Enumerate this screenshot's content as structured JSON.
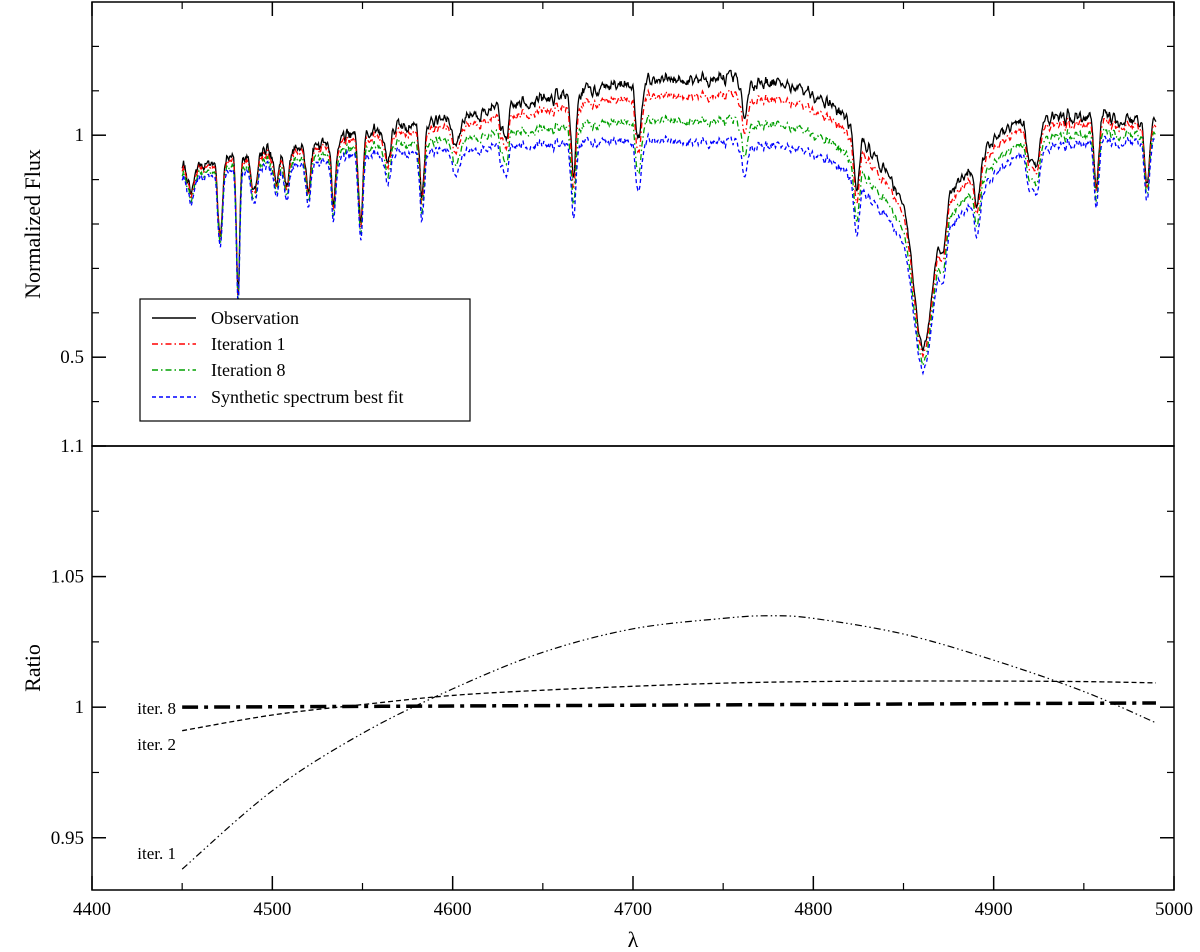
{
  "chart_data": [
    {
      "type": "line",
      "panel": "top",
      "title": "",
      "xlabel": "",
      "ylabel": "Normalized Flux",
      "xlim": [
        4400,
        5000
      ],
      "ylim": [
        0.3,
        1.3
      ],
      "y_tick_labels": [
        {
          "value": 0.5,
          "label": "0.5"
        },
        {
          "value": 1.0,
          "label": "1"
        }
      ],
      "y_minor_ticks": [
        0.4,
        0.6,
        0.7,
        0.8,
        0.9,
        1.1,
        1.2
      ],
      "legend": {
        "placement": "bottom-left",
        "entries": [
          "Observation",
          "Iteration 1",
          "Iteration 8",
          "Synthetic spectrum best fit"
        ]
      },
      "x_start": 4450,
      "x_end": 4990,
      "series": [
        {
          "name": "Observation",
          "color": "#000000",
          "style": "solid",
          "scale_peak": 1.05
        },
        {
          "name": "Iteration 1",
          "color": "#ff0000",
          "style": "dashdot",
          "scale_peak": 1.03
        },
        {
          "name": "Iteration 8",
          "color": "#00a000",
          "style": "dashdot",
          "scale_peak": 1.0
        },
        {
          "name": "Synthetic spectrum best fit",
          "color": "#0000ff",
          "style": "dashed",
          "scale_peak": 0.975
        }
      ],
      "continuum": [
        [
          4450,
          0.9
        ],
        [
          4550,
          0.955
        ],
        [
          4700,
          0.99
        ],
        [
          4830,
          0.97
        ],
        [
          4990,
          0.985
        ]
      ],
      "absorption_lines": [
        [
          4455,
          0.07,
          1.5
        ],
        [
          4471,
          0.18,
          1.2
        ],
        [
          4481,
          0.32,
          0.9
        ],
        [
          4490,
          0.09,
          1.5
        ],
        [
          4502,
          0.06,
          1.6
        ],
        [
          4508,
          0.08,
          1.4
        ],
        [
          4520,
          0.1,
          1.4
        ],
        [
          4534,
          0.14,
          1.3
        ],
        [
          4549,
          0.2,
          1.2
        ],
        [
          4564,
          0.07,
          1.5
        ],
        [
          4583,
          0.16,
          1.2
        ],
        [
          4602,
          0.06,
          2.0
        ],
        [
          4629,
          0.07,
          1.8
        ],
        [
          4667,
          0.17,
          1.3
        ],
        [
          4703,
          0.12,
          1.4
        ],
        [
          4762,
          0.07,
          1.8
        ],
        [
          4824,
          0.14,
          1.4
        ],
        [
          4872,
          0.11,
          1.6
        ],
        [
          4891,
          0.1,
          1.6
        ],
        [
          4920,
          0.09,
          1.6
        ],
        [
          4924,
          0.1,
          1.6
        ],
        [
          4957,
          0.14,
          1.3
        ],
        [
          4985,
          0.13,
          1.3
        ]
      ],
      "broad_line": {
        "center": 4861,
        "depth_narrow": 0.38,
        "width_narrow": 5,
        "depth_broad": 0.22,
        "width_broad": 26
      }
    },
    {
      "type": "line",
      "panel": "bottom",
      "title": "",
      "xlabel": "λ",
      "ylabel": "Ratio",
      "xlim": [
        4400,
        5000
      ],
      "ylim": [
        0.93,
        1.1
      ],
      "x_tick_labels": [
        {
          "value": 4400,
          "label": "4400"
        },
        {
          "value": 4500,
          "label": "4500"
        },
        {
          "value": 4600,
          "label": "4600"
        },
        {
          "value": 4700,
          "label": "4700"
        },
        {
          "value": 4800,
          "label": "4800"
        },
        {
          "value": 4900,
          "label": "4900"
        },
        {
          "value": 5000,
          "label": "5000"
        }
      ],
      "x_minor_ticks": [
        4450,
        4550,
        4650,
        4750,
        4850,
        4950
      ],
      "y_tick_labels": [
        {
          "value": 0.95,
          "label": "0.95"
        },
        {
          "value": 1.0,
          "label": "1"
        },
        {
          "value": 1.05,
          "label": "1.05"
        },
        {
          "value": 1.1,
          "label": "1.1"
        }
      ],
      "y_minor_ticks": [
        0.975,
        1.025,
        1.075
      ],
      "series": [
        {
          "name": "iter. 1",
          "style": "dashdotdot-thin",
          "x": [
            4450,
            4500,
            4550,
            4600,
            4650,
            4700,
            4750,
            4775,
            4800,
            4850,
            4900,
            4950,
            4990
          ],
          "y": [
            0.938,
            0.968,
            0.99,
            1.007,
            1.021,
            1.03,
            1.034,
            1.035,
            1.034,
            1.028,
            1.018,
            1.006,
            0.994
          ]
        },
        {
          "name": "iter. 2",
          "style": "dashed-thin",
          "x": [
            4450,
            4500,
            4550,
            4600,
            4650,
            4700,
            4750,
            4800,
            4850,
            4900,
            4950,
            4990
          ],
          "y": [
            0.991,
            0.997,
            1.001,
            1.0045,
            1.0065,
            1.008,
            1.0092,
            1.0098,
            1.01,
            1.01,
            1.0098,
            1.0093
          ]
        },
        {
          "name": "iter. 8",
          "style": "dashdot-thick",
          "x": [
            4450,
            4550,
            4650,
            4750,
            4850,
            4950,
            4990
          ],
          "y": [
            1.0,
            1.0003,
            1.0006,
            1.0009,
            1.0012,
            1.0015,
            1.0016
          ]
        }
      ]
    }
  ]
}
